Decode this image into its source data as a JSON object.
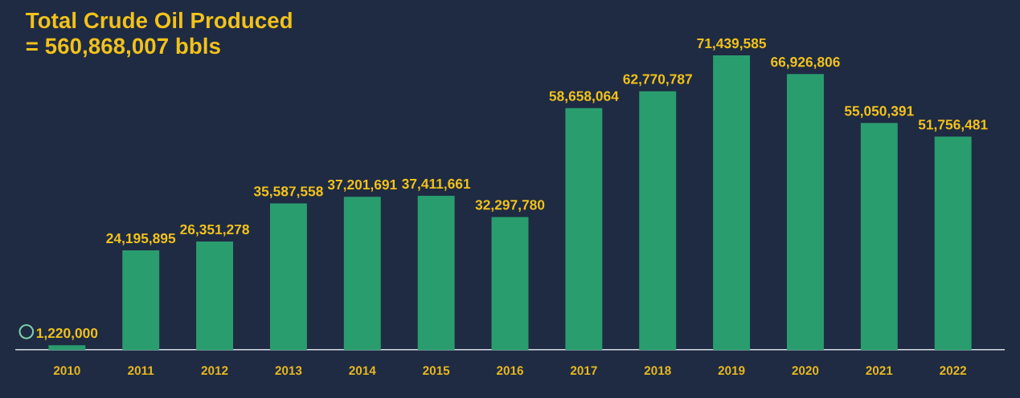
{
  "chart_data": {
    "type": "bar",
    "title": "Total Crude Oil Produced\n= 560,868,007 bbls",
    "categories": [
      "2010",
      "2011",
      "2012",
      "2013",
      "2014",
      "2015",
      "2016",
      "2017",
      "2018",
      "2019",
      "2020",
      "2021",
      "2022"
    ],
    "values": [
      1220000,
      24195895,
      26351278,
      35587558,
      37201691,
      37411661,
      32297780,
      58658064,
      62770787,
      71439585,
      66926806,
      55050391,
      51756481
    ],
    "value_labels": [
      "1,220,000",
      "24,195,895",
      "26,351,278",
      "35,587,558",
      "37,201,691",
      "37,411,661",
      "32,297,780",
      "58,658,064",
      "62,770,787",
      "71,439,585",
      "66,926,806",
      "55,050,391",
      "51,756,481"
    ],
    "color": "#2a9d6e",
    "grid": false,
    "legend": false
  }
}
